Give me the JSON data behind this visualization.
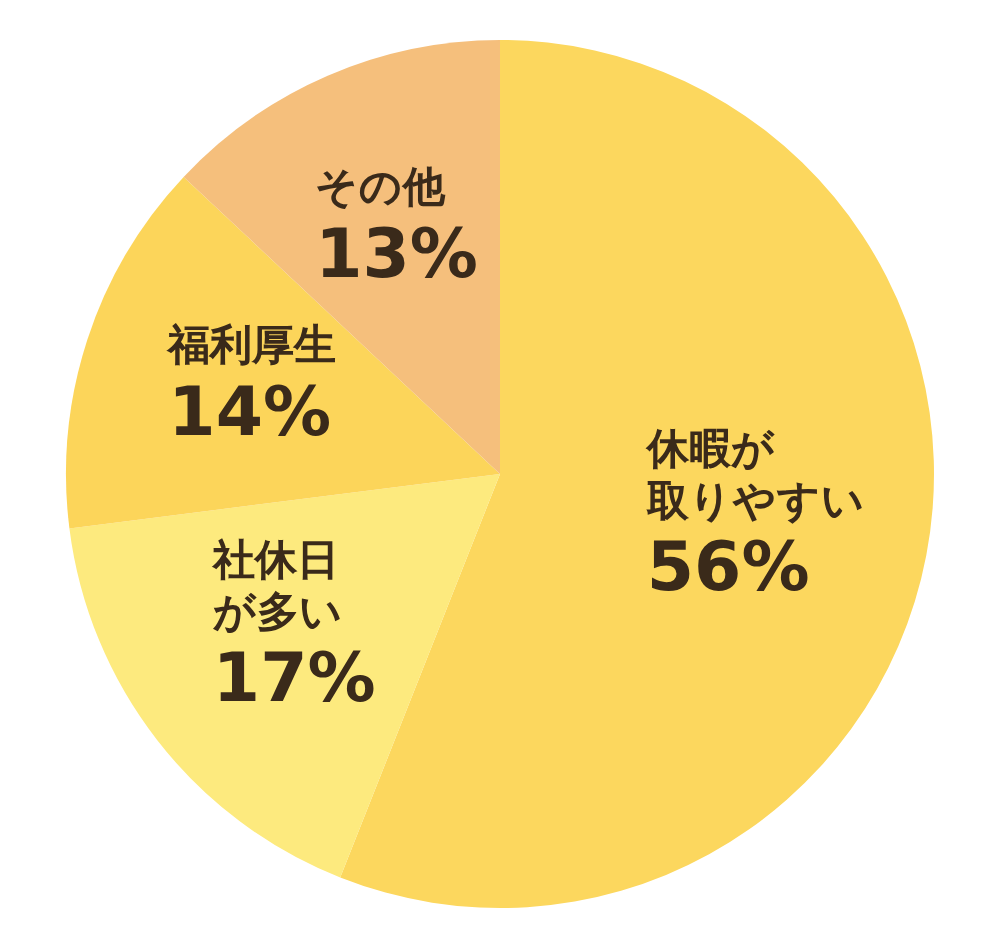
{
  "chart_data": {
    "type": "pie",
    "categories": [
      "休暇が取りやすい",
      "社休日が多い",
      "福利厚生",
      "その他"
    ],
    "values": [
      56,
      17,
      14,
      13
    ],
    "value_labels": [
      "56%",
      "17%",
      "14%",
      "13%"
    ],
    "colors": [
      "#fcd75e",
      "#fdea7e",
      "#fcd55a",
      "#f5bf7c"
    ],
    "legend": false
  }
}
